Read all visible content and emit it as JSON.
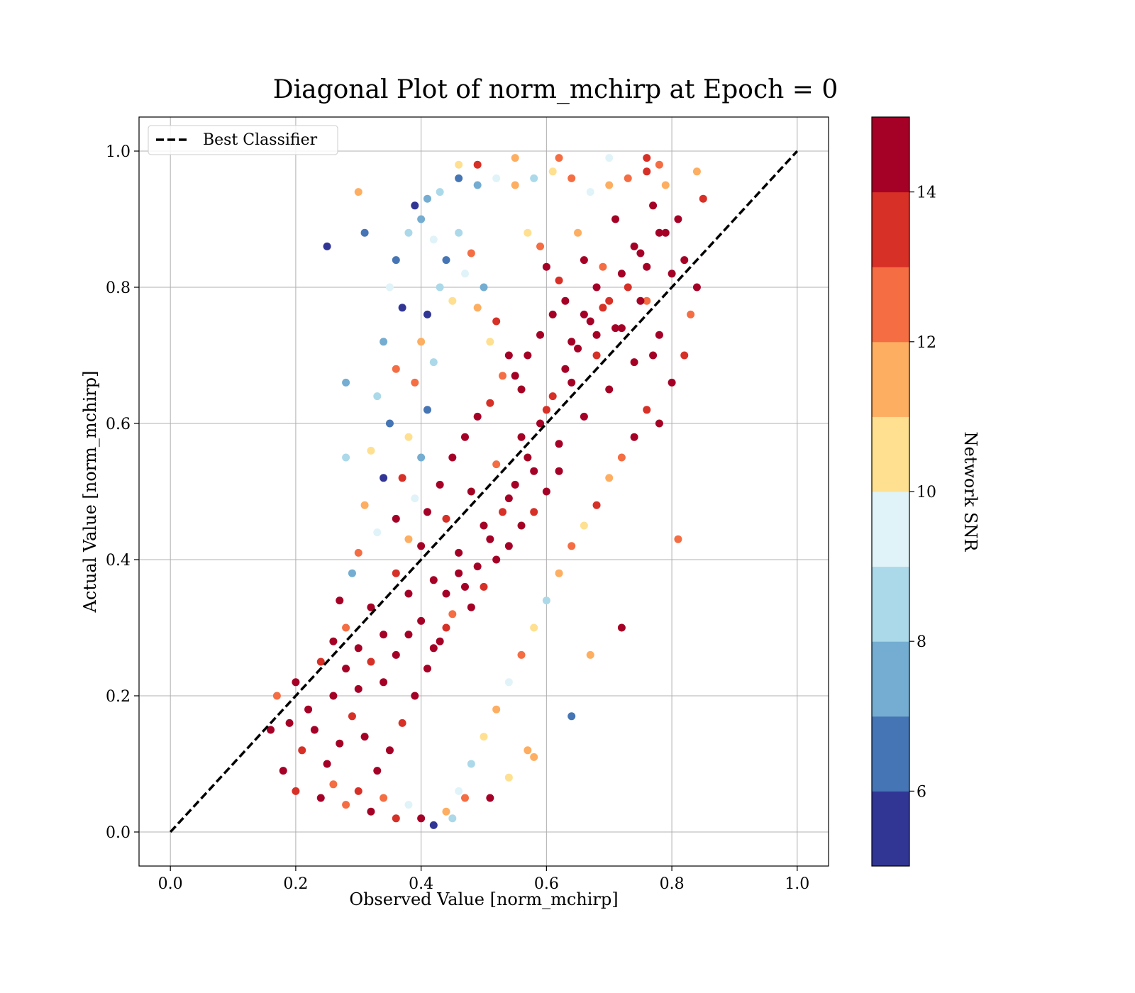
{
  "chart_data": {
    "type": "scatter",
    "title": "Diagonal Plot of norm_mchirp at Epoch = 0",
    "xlabel": "Observed Value [norm_mchirp]",
    "ylabel": "Actual Value [norm_mchirp]",
    "xlim": [
      -0.05,
      1.05
    ],
    "ylim": [
      -0.05,
      1.05
    ],
    "xticks": [
      "0.0",
      "0.2",
      "0.4",
      "0.6",
      "0.8",
      "1.0"
    ],
    "yticks": [
      "0.0",
      "0.2",
      "0.4",
      "0.6",
      "0.8",
      "1.0"
    ],
    "xtick_values": [
      0.0,
      0.2,
      0.4,
      0.6,
      0.8,
      1.0
    ],
    "ytick_values": [
      0.0,
      0.2,
      0.4,
      0.6,
      0.8,
      1.0
    ],
    "grid": true,
    "legend": {
      "position": "upper-left",
      "entries": [
        "Best Classifier"
      ]
    },
    "reference_line": {
      "name": "Best Classifier",
      "style": "dashed",
      "color": "#000000",
      "x": [
        0.0,
        1.0
      ],
      "y": [
        0.0,
        1.0
      ]
    },
    "colorbar": {
      "label": "Network SNR",
      "range": [
        5,
        15
      ],
      "ticks": [
        "6",
        "8",
        "10",
        "12",
        "14"
      ],
      "tick_values": [
        6,
        8,
        10,
        12,
        14
      ],
      "colors": [
        "#313695",
        "#4575b4",
        "#74add1",
        "#abd9e9",
        "#e0f3f8",
        "#fee090",
        "#fdae61",
        "#f46d43",
        "#d73027",
        "#a50026"
      ]
    },
    "points": [
      [
        0.2,
        0.22,
        14.5
      ],
      [
        0.22,
        0.18,
        15
      ],
      [
        0.24,
        0.25,
        13
      ],
      [
        0.26,
        0.2,
        14.8
      ],
      [
        0.28,
        0.3,
        12.5
      ],
      [
        0.3,
        0.27,
        15
      ],
      [
        0.32,
        0.33,
        14
      ],
      [
        0.34,
        0.29,
        15
      ],
      [
        0.36,
        0.38,
        13.5
      ],
      [
        0.38,
        0.35,
        15
      ],
      [
        0.4,
        0.42,
        14.7
      ],
      [
        0.42,
        0.37,
        15
      ],
      [
        0.44,
        0.46,
        13
      ],
      [
        0.46,
        0.41,
        15
      ],
      [
        0.48,
        0.5,
        14.2
      ],
      [
        0.5,
        0.45,
        15
      ],
      [
        0.52,
        0.54,
        12.8
      ],
      [
        0.54,
        0.49,
        15
      ],
      [
        0.56,
        0.58,
        14.5
      ],
      [
        0.58,
        0.53,
        15
      ],
      [
        0.6,
        0.62,
        13.6
      ],
      [
        0.62,
        0.57,
        15
      ],
      [
        0.64,
        0.66,
        14.9
      ],
      [
        0.66,
        0.61,
        15
      ],
      [
        0.68,
        0.7,
        13.2
      ],
      [
        0.7,
        0.65,
        15
      ],
      [
        0.72,
        0.74,
        14.4
      ],
      [
        0.74,
        0.69,
        15
      ],
      [
        0.76,
        0.78,
        12.6
      ],
      [
        0.78,
        0.73,
        15
      ],
      [
        0.8,
        0.82,
        14.1
      ],
      [
        0.79,
        0.88,
        15
      ],
      [
        0.77,
        0.92,
        14.6
      ],
      [
        0.75,
        0.85,
        15
      ],
      [
        0.73,
        0.8,
        13.9
      ],
      [
        0.71,
        0.9,
        15
      ],
      [
        0.69,
        0.83,
        12.9
      ],
      [
        0.67,
        0.75,
        15
      ],
      [
        0.65,
        0.71,
        14.3
      ],
      [
        0.63,
        0.68,
        15
      ],
      [
        0.61,
        0.64,
        13.4
      ],
      [
        0.59,
        0.6,
        15
      ],
      [
        0.57,
        0.55,
        14.8
      ],
      [
        0.55,
        0.51,
        15
      ],
      [
        0.53,
        0.47,
        13.1
      ],
      [
        0.51,
        0.43,
        15
      ],
      [
        0.49,
        0.39,
        14.6
      ],
      [
        0.47,
        0.36,
        15
      ],
      [
        0.45,
        0.32,
        12.7
      ],
      [
        0.43,
        0.28,
        15
      ],
      [
        0.41,
        0.24,
        14.2
      ],
      [
        0.39,
        0.2,
        15
      ],
      [
        0.37,
        0.16,
        13.7
      ],
      [
        0.35,
        0.12,
        15
      ],
      [
        0.33,
        0.09,
        14.4
      ],
      [
        0.31,
        0.14,
        15
      ],
      [
        0.29,
        0.17,
        13.3
      ],
      [
        0.27,
        0.13,
        15
      ],
      [
        0.25,
        0.1,
        14.9
      ],
      [
        0.23,
        0.15,
        15
      ],
      [
        0.21,
        0.12,
        13.8
      ],
      [
        0.19,
        0.16,
        15
      ],
      [
        0.18,
        0.09,
        14.1
      ],
      [
        0.17,
        0.2,
        12.4
      ],
      [
        0.16,
        0.15,
        15
      ],
      [
        0.2,
        0.06,
        13.6
      ],
      [
        0.24,
        0.05,
        14.7
      ],
      [
        0.28,
        0.04,
        12.9
      ],
      [
        0.32,
        0.03,
        15
      ],
      [
        0.36,
        0.02,
        13.2
      ],
      [
        0.4,
        0.02,
        14.5
      ],
      [
        0.44,
        0.03,
        11.5
      ],
      [
        0.46,
        0.06,
        9.5
      ],
      [
        0.48,
        0.1,
        8.5
      ],
      [
        0.5,
        0.14,
        10.5
      ],
      [
        0.52,
        0.18,
        11.8
      ],
      [
        0.54,
        0.22,
        9.2
      ],
      [
        0.56,
        0.26,
        12.2
      ],
      [
        0.58,
        0.3,
        10.8
      ],
      [
        0.6,
        0.34,
        8.8
      ],
      [
        0.62,
        0.38,
        11.2
      ],
      [
        0.64,
        0.42,
        12.6
      ],
      [
        0.66,
        0.45,
        10.2
      ],
      [
        0.68,
        0.48,
        13.1
      ],
      [
        0.7,
        0.52,
        11.6
      ],
      [
        0.72,
        0.55,
        12.9
      ],
      [
        0.74,
        0.58,
        14.2
      ],
      [
        0.76,
        0.62,
        13.4
      ],
      [
        0.78,
        0.6,
        15
      ],
      [
        0.8,
        0.66,
        14.7
      ],
      [
        0.82,
        0.7,
        13.5
      ],
      [
        0.83,
        0.76,
        12.3
      ],
      [
        0.82,
        0.84,
        15
      ],
      [
        0.81,
        0.9,
        14.2
      ],
      [
        0.79,
        0.95,
        11.4
      ],
      [
        0.76,
        0.97,
        13.7
      ],
      [
        0.73,
        0.96,
        12.5
      ],
      [
        0.7,
        0.95,
        11.1
      ],
      [
        0.67,
        0.94,
        9.8
      ],
      [
        0.64,
        0.96,
        12.4
      ],
      [
        0.61,
        0.97,
        10.6
      ],
      [
        0.58,
        0.96,
        8.6
      ],
      [
        0.55,
        0.95,
        11.9
      ],
      [
        0.52,
        0.96,
        9.1
      ],
      [
        0.49,
        0.95,
        7.8
      ],
      [
        0.46,
        0.96,
        6.5
      ],
      [
        0.43,
        0.94,
        8.2
      ],
      [
        0.41,
        0.93,
        7.1
      ],
      [
        0.39,
        0.92,
        5.6
      ],
      [
        0.38,
        0.88,
        8.9
      ],
      [
        0.36,
        0.84,
        6.2
      ],
      [
        0.35,
        0.8,
        9.6
      ],
      [
        0.37,
        0.77,
        5.4
      ],
      [
        0.34,
        0.72,
        7.5
      ],
      [
        0.36,
        0.68,
        12.1
      ],
      [
        0.33,
        0.64,
        8.4
      ],
      [
        0.35,
        0.6,
        6.8
      ],
      [
        0.32,
        0.56,
        10.3
      ],
      [
        0.34,
        0.52,
        5.8
      ],
      [
        0.31,
        0.48,
        11.7
      ],
      [
        0.33,
        0.44,
        9.4
      ],
      [
        0.3,
        0.41,
        12.8
      ],
      [
        0.29,
        0.38,
        7.3
      ],
      [
        0.27,
        0.34,
        14.1
      ],
      [
        0.4,
        0.9,
        7.6
      ],
      [
        0.42,
        0.87,
        9.3
      ],
      [
        0.44,
        0.84,
        6.1
      ],
      [
        0.43,
        0.8,
        8.7
      ],
      [
        0.45,
        0.78,
        10.9
      ],
      [
        0.41,
        0.76,
        5.9
      ],
      [
        0.4,
        0.72,
        11.3
      ],
      [
        0.42,
        0.69,
        8.1
      ],
      [
        0.39,
        0.66,
        12.7
      ],
      [
        0.41,
        0.62,
        6.6
      ],
      [
        0.38,
        0.58,
        10.1
      ],
      [
        0.4,
        0.55,
        7.2
      ],
      [
        0.37,
        0.52,
        13.8
      ],
      [
        0.39,
        0.49,
        9.7
      ],
      [
        0.36,
        0.46,
        14.6
      ],
      [
        0.38,
        0.43,
        11.4
      ],
      [
        0.46,
        0.88,
        8.3
      ],
      [
        0.48,
        0.85,
        12.2
      ],
      [
        0.47,
        0.82,
        9.9
      ],
      [
        0.5,
        0.8,
        7.4
      ],
      [
        0.49,
        0.77,
        11.8
      ],
      [
        0.52,
        0.75,
        13.3
      ],
      [
        0.51,
        0.72,
        10.4
      ],
      [
        0.54,
        0.7,
        14.4
      ],
      [
        0.53,
        0.67,
        12.9
      ],
      [
        0.56,
        0.65,
        15
      ],
      [
        0.57,
        0.88,
        10.7
      ],
      [
        0.59,
        0.86,
        12.6
      ],
      [
        0.6,
        0.83,
        14.8
      ],
      [
        0.62,
        0.81,
        13.1
      ],
      [
        0.63,
        0.78,
        15
      ],
      [
        0.65,
        0.88,
        11.5
      ],
      [
        0.66,
        0.84,
        14.3
      ],
      [
        0.68,
        0.8,
        15
      ],
      [
        0.69,
        0.77,
        13.7
      ],
      [
        0.71,
        0.74,
        15
      ],
      [
        0.25,
        0.86,
        5.5
      ],
      [
        0.31,
        0.88,
        6.4
      ],
      [
        0.3,
        0.94,
        11.7
      ],
      [
        0.28,
        0.55,
        8.3
      ],
      [
        0.28,
        0.66,
        7.7
      ],
      [
        0.72,
        0.3,
        14.9
      ],
      [
        0.64,
        0.17,
        6.0
      ],
      [
        0.67,
        0.26,
        11.2
      ],
      [
        0.81,
        0.43,
        12.9
      ],
      [
        0.58,
        0.11,
        11.9
      ],
      [
        0.46,
        0.98,
        10.3
      ],
      [
        0.49,
        0.98,
        13.5
      ],
      [
        0.55,
        0.99,
        11.6
      ],
      [
        0.62,
        0.99,
        12.8
      ],
      [
        0.7,
        0.99,
        9.6
      ],
      [
        0.76,
        0.99,
        13.9
      ],
      [
        0.78,
        0.98,
        12.4
      ],
      [
        0.85,
        0.93,
        13.2
      ],
      [
        0.84,
        0.97,
        11.8
      ],
      [
        0.84,
        0.8,
        14.2
      ],
      [
        0.26,
        0.07,
        12.1
      ],
      [
        0.3,
        0.06,
        13.6
      ],
      [
        0.34,
        0.05,
        12.7
      ],
      [
        0.38,
        0.04,
        9.2
      ],
      [
        0.42,
        0.01,
        5.8
      ],
      [
        0.45,
        0.02,
        8.8
      ],
      [
        0.47,
        0.05,
        12.3
      ],
      [
        0.51,
        0.05,
        14.1
      ],
      [
        0.54,
        0.08,
        10.8
      ],
      [
        0.57,
        0.12,
        11.3
      ],
      [
        0.45,
        0.55,
        15
      ],
      [
        0.47,
        0.58,
        14.5
      ],
      [
        0.49,
        0.61,
        15
      ],
      [
        0.51,
        0.63,
        13.9
      ],
      [
        0.43,
        0.51,
        15
      ],
      [
        0.41,
        0.47,
        14.6
      ],
      [
        0.55,
        0.67,
        15
      ],
      [
        0.57,
        0.7,
        14.2
      ],
      [
        0.59,
        0.73,
        15
      ],
      [
        0.61,
        0.76,
        14.8
      ],
      [
        0.44,
        0.35,
        15
      ],
      [
        0.46,
        0.38,
        14.4
      ],
      [
        0.48,
        0.33,
        15
      ],
      [
        0.5,
        0.36,
        13.8
      ],
      [
        0.52,
        0.4,
        15
      ],
      [
        0.54,
        0.42,
        14.9
      ],
      [
        0.56,
        0.45,
        15
      ],
      [
        0.58,
        0.47,
        13.6
      ],
      [
        0.6,
        0.5,
        15
      ],
      [
        0.62,
        0.53,
        14.7
      ],
      [
        0.26,
        0.28,
        15
      ],
      [
        0.28,
        0.24,
        14.3
      ],
      [
        0.3,
        0.21,
        15
      ],
      [
        0.32,
        0.25,
        13.7
      ],
      [
        0.34,
        0.22,
        15
      ],
      [
        0.36,
        0.26,
        14.8
      ],
      [
        0.38,
        0.29,
        15
      ],
      [
        0.4,
        0.31,
        14.1
      ],
      [
        0.42,
        0.27,
        15
      ],
      [
        0.44,
        0.3,
        13.5
      ],
      [
        0.64,
        0.72,
        15
      ],
      [
        0.66,
        0.76,
        14.6
      ],
      [
        0.68,
        0.73,
        15
      ],
      [
        0.7,
        0.78,
        13.9
      ],
      [
        0.72,
        0.82,
        15
      ],
      [
        0.74,
        0.86,
        14.5
      ],
      [
        0.76,
        0.83,
        15
      ],
      [
        0.78,
        0.88,
        14.2
      ],
      [
        0.75,
        0.78,
        15
      ],
      [
        0.77,
        0.7,
        14.7
      ]
    ]
  }
}
